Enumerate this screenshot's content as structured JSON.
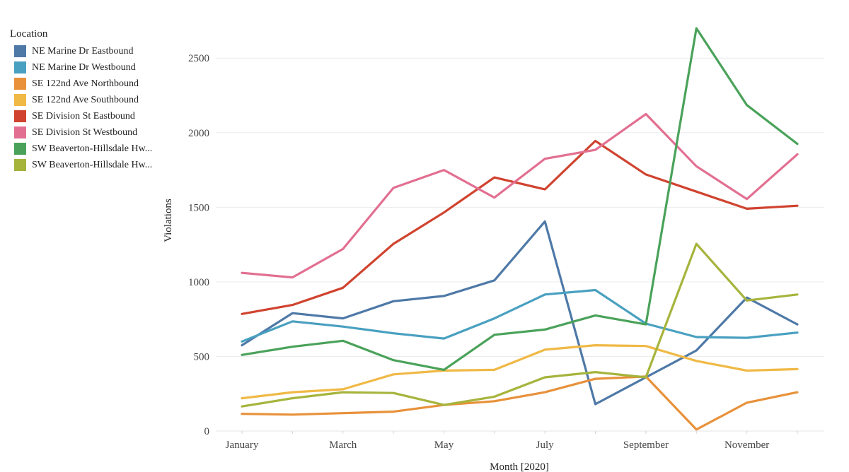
{
  "chart_data": {
    "type": "line",
    "title": "",
    "xlabel": "Month [2020]",
    "ylabel": "Violations",
    "legend_title": "Location",
    "legend_position": "top-left",
    "ylim": [
      0,
      2700
    ],
    "yticks": [
      0,
      500,
      1000,
      1500,
      2000,
      2500
    ],
    "x": [
      "January",
      "February",
      "March",
      "April",
      "May",
      "June",
      "July",
      "August",
      "September",
      "October",
      "November",
      "December"
    ],
    "xtick_labels": [
      "January",
      "",
      "March",
      "",
      "May",
      "",
      "July",
      "",
      "September",
      "",
      "November",
      ""
    ],
    "series": [
      {
        "name": "NE Marine Dr Eastbound",
        "color": "#4e79a7",
        "values": [
          575,
          790,
          755,
          870,
          905,
          1010,
          1405,
          180,
          360,
          540,
          895,
          715
        ]
      },
      {
        "name": "NE Marine Dr Westbound",
        "color": "#49a0c0",
        "values": [
          600,
          735,
          700,
          655,
          620,
          755,
          915,
          945,
          720,
          630,
          625,
          660
        ]
      },
      {
        "name": "SE 122nd Ave Northbound",
        "color": "#e8913a",
        "values": [
          115,
          110,
          120,
          130,
          175,
          200,
          260,
          350,
          365,
          10,
          190,
          260
        ]
      },
      {
        "name": "SE 122nd Ave Southbound",
        "color": "#f0b946",
        "values": [
          220,
          260,
          280,
          380,
          405,
          410,
          545,
          575,
          570,
          470,
          405,
          415
        ]
      },
      {
        "name": "SE Division St Eastbound",
        "color": "#d0432f",
        "values": [
          785,
          845,
          960,
          1255,
          1465,
          1700,
          1620,
          1945,
          1720,
          1605,
          1490,
          1510
        ]
      },
      {
        "name": "SE Division St Westbound",
        "color": "#e26f91",
        "values": [
          1060,
          1030,
          1220,
          1630,
          1750,
          1565,
          1825,
          1885,
          2125,
          1775,
          1555,
          1855
        ]
      },
      {
        "name": "SW Beaverton-Hillsdale Hw...",
        "color": "#4aa25a",
        "values": [
          510,
          565,
          605,
          475,
          410,
          645,
          680,
          775,
          715,
          2700,
          2185,
          1925
        ]
      },
      {
        "name": "SW Beaverton-Hillsdale Hw...",
        "color": "#a6b43c",
        "values": [
          165,
          220,
          260,
          255,
          175,
          230,
          360,
          395,
          360,
          1255,
          875,
          915
        ]
      }
    ]
  }
}
